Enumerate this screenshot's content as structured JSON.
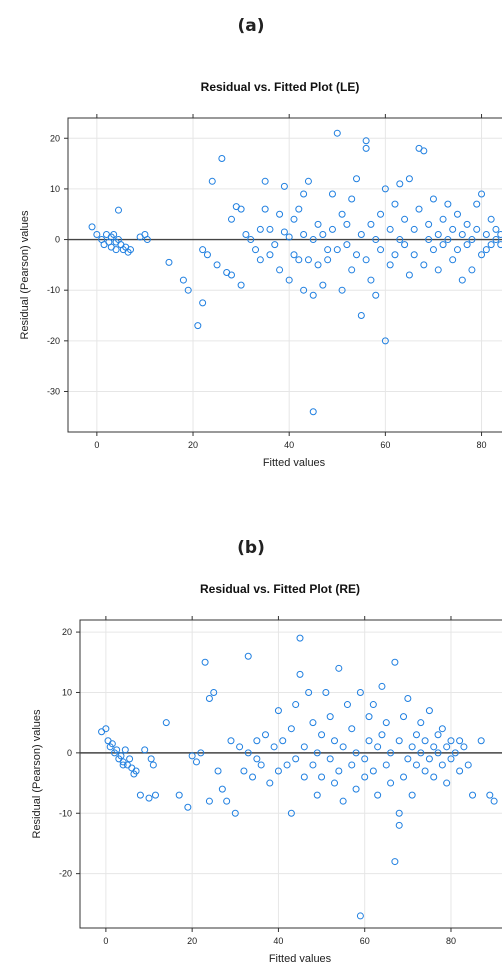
{
  "chart_data": [
    {
      "type": "scatter",
      "panel_label": "(a)",
      "title": "Residual vs. Fitted Plot (LE)",
      "xlabel": "Fitted values",
      "ylabel": "Residual (Pearson) values",
      "xlim": [
        -6,
        88
      ],
      "ylim": [
        -38,
        24
      ],
      "xticks": [
        0,
        20,
        40,
        60,
        80
      ],
      "yticks": [
        -30,
        -20,
        -10,
        0,
        10,
        20
      ],
      "reference_line_y": 0,
      "grid": true,
      "marker_color": "#1f7fe0",
      "points": [
        [
          -1,
          2.5
        ],
        [
          0,
          1
        ],
        [
          1,
          0
        ],
        [
          1.5,
          -1
        ],
        [
          2,
          1
        ],
        [
          2.5,
          -0.5
        ],
        [
          3,
          0.5
        ],
        [
          3,
          -1.5
        ],
        [
          3.5,
          1
        ],
        [
          4,
          -0.5
        ],
        [
          4,
          -2
        ],
        [
          4.5,
          0
        ],
        [
          5,
          -1
        ],
        [
          5.5,
          -2
        ],
        [
          6,
          -1.5
        ],
        [
          6.5,
          -2.5
        ],
        [
          7,
          -2
        ],
        [
          4.5,
          5.8
        ],
        [
          9,
          0.5
        ],
        [
          10,
          1
        ],
        [
          10.5,
          0
        ],
        [
          15,
          -4.5
        ],
        [
          18,
          -8
        ],
        [
          19,
          -10
        ],
        [
          21,
          -17
        ],
        [
          22,
          -12.5
        ],
        [
          22,
          -2
        ],
        [
          23,
          -3
        ],
        [
          24,
          11.5
        ],
        [
          25,
          -5
        ],
        [
          26,
          16
        ],
        [
          27,
          -6.5
        ],
        [
          28,
          -7
        ],
        [
          28,
          4
        ],
        [
          29,
          6.5
        ],
        [
          30,
          6
        ],
        [
          30,
          -9
        ],
        [
          31,
          1
        ],
        [
          32,
          0
        ],
        [
          33,
          -2
        ],
        [
          34,
          -4
        ],
        [
          34,
          2
        ],
        [
          35,
          11.5
        ],
        [
          35,
          6
        ],
        [
          36,
          -3
        ],
        [
          36,
          2
        ],
        [
          37,
          -1
        ],
        [
          38,
          5
        ],
        [
          38,
          -6
        ],
        [
          39,
          1.5
        ],
        [
          39,
          10.5
        ],
        [
          40,
          -8
        ],
        [
          40,
          0.5
        ],
        [
          41,
          4
        ],
        [
          41,
          -3
        ],
        [
          42,
          6
        ],
        [
          42,
          -4
        ],
        [
          43,
          9
        ],
        [
          43,
          1
        ],
        [
          43,
          -10
        ],
        [
          44,
          -4
        ],
        [
          44,
          11.5
        ],
        [
          45,
          0
        ],
        [
          45,
          -11
        ],
        [
          45,
          -34
        ],
        [
          46,
          -5
        ],
        [
          46,
          3
        ],
        [
          47,
          -9
        ],
        [
          47,
          1
        ],
        [
          48,
          -2
        ],
        [
          48,
          -4
        ],
        [
          49,
          2
        ],
        [
          49,
          9
        ],
        [
          50,
          21
        ],
        [
          50,
          -2
        ],
        [
          51,
          5
        ],
        [
          51,
          -10
        ],
        [
          52,
          -1
        ],
        [
          52,
          3
        ],
        [
          53,
          -6
        ],
        [
          53,
          8
        ],
        [
          54,
          -3
        ],
        [
          54,
          12
        ],
        [
          55,
          1
        ],
        [
          55,
          -15
        ],
        [
          56,
          -4
        ],
        [
          56,
          19.5
        ],
        [
          56,
          18
        ],
        [
          57,
          3
        ],
        [
          57,
          -8
        ],
        [
          58,
          0
        ],
        [
          58,
          -11
        ],
        [
          59,
          5
        ],
        [
          59,
          -2
        ],
        [
          60,
          10
        ],
        [
          60,
          -20
        ],
        [
          61,
          2
        ],
        [
          61,
          -5
        ],
        [
          62,
          7
        ],
        [
          62,
          -3
        ],
        [
          63,
          0
        ],
        [
          63,
          11
        ],
        [
          64,
          -1
        ],
        [
          64,
          4
        ],
        [
          65,
          -7
        ],
        [
          65,
          12
        ],
        [
          66,
          2
        ],
        [
          66,
          -3
        ],
        [
          67,
          18
        ],
        [
          67,
          6
        ],
        [
          68,
          17.5
        ],
        [
          68,
          -5
        ],
        [
          69,
          0
        ],
        [
          69,
          3
        ],
        [
          70,
          -2
        ],
        [
          70,
          8
        ],
        [
          71,
          1
        ],
        [
          71,
          -6
        ],
        [
          72,
          4
        ],
        [
          72,
          -1
        ],
        [
          73,
          0
        ],
        [
          73,
          7
        ],
        [
          74,
          -4
        ],
        [
          74,
          2
        ],
        [
          75,
          -2
        ],
        [
          75,
          5
        ],
        [
          76,
          1
        ],
        [
          76,
          -8
        ],
        [
          77,
          -1
        ],
        [
          77,
          3
        ],
        [
          78,
          0
        ],
        [
          78,
          -6
        ],
        [
          79,
          2
        ],
        [
          79,
          7
        ],
        [
          80,
          -3
        ],
        [
          80,
          9
        ],
        [
          81,
          1
        ],
        [
          81,
          -2
        ],
        [
          82,
          4
        ],
        [
          82,
          -1
        ],
        [
          83,
          0
        ],
        [
          83,
          2
        ],
        [
          84,
          -1
        ],
        [
          84,
          1
        ],
        [
          85,
          0
        ]
      ]
    },
    {
      "type": "scatter",
      "panel_label": "(b)",
      "title": "Residual vs. Fitted Plot (RE)",
      "xlabel": "Fitted values",
      "ylabel": "Residual (Pearson) values",
      "xlim": [
        -6,
        96
      ],
      "ylim": [
        -29,
        22
      ],
      "xticks": [
        0,
        20,
        40,
        60,
        80
      ],
      "yticks": [
        -20,
        -10,
        0,
        10,
        20
      ],
      "reference_line_y": 0,
      "grid": true,
      "marker_color": "#1f7fe0",
      "points": [
        [
          -1,
          3.5
        ],
        [
          0,
          4
        ],
        [
          0.5,
          2
        ],
        [
          1,
          1
        ],
        [
          1.5,
          1.5
        ],
        [
          2,
          0
        ],
        [
          2.5,
          0.5
        ],
        [
          3,
          -1
        ],
        [
          3.5,
          -0.5
        ],
        [
          4,
          -1.5
        ],
        [
          4.5,
          0.5
        ],
        [
          4,
          -2
        ],
        [
          5,
          -2
        ],
        [
          5.5,
          -1
        ],
        [
          6,
          -2.5
        ],
        [
          6.5,
          -3.5
        ],
        [
          7,
          -3
        ],
        [
          8,
          -7
        ],
        [
          9,
          0.5
        ],
        [
          10,
          -7.5
        ],
        [
          10.5,
          -1
        ],
        [
          11,
          -2
        ],
        [
          11.5,
          -7
        ],
        [
          14,
          5
        ],
        [
          17,
          -7
        ],
        [
          19,
          -9
        ],
        [
          20,
          -0.5
        ],
        [
          21,
          -1.5
        ],
        [
          22,
          0
        ],
        [
          23,
          15
        ],
        [
          24,
          9
        ],
        [
          24,
          -8
        ],
        [
          25,
          10
        ],
        [
          26,
          -3
        ],
        [
          27,
          -6
        ],
        [
          28,
          -8
        ],
        [
          29,
          2
        ],
        [
          30,
          -10
        ],
        [
          31,
          1
        ],
        [
          32,
          -3
        ],
        [
          33,
          16
        ],
        [
          33,
          0
        ],
        [
          34,
          -4
        ],
        [
          35,
          2
        ],
        [
          35,
          -1
        ],
        [
          36,
          -2
        ],
        [
          37,
          3
        ],
        [
          38,
          -5
        ],
        [
          39,
          1
        ],
        [
          40,
          -3
        ],
        [
          40,
          7
        ],
        [
          41,
          2
        ],
        [
          42,
          -2
        ],
        [
          43,
          4
        ],
        [
          43,
          -10
        ],
        [
          44,
          8
        ],
        [
          44,
          -1
        ],
        [
          45,
          19
        ],
        [
          45,
          13
        ],
        [
          46,
          -4
        ],
        [
          46,
          1
        ],
        [
          47,
          10
        ],
        [
          48,
          -2
        ],
        [
          48,
          5
        ],
        [
          49,
          -7
        ],
        [
          49,
          0
        ],
        [
          50,
          3
        ],
        [
          50,
          -4
        ],
        [
          51,
          10
        ],
        [
          52,
          -1
        ],
        [
          52,
          6
        ],
        [
          53,
          -5
        ],
        [
          53,
          2
        ],
        [
          54,
          14
        ],
        [
          54,
          -3
        ],
        [
          55,
          1
        ],
        [
          55,
          -8
        ],
        [
          56,
          8
        ],
        [
          57,
          -2
        ],
        [
          57,
          4
        ],
        [
          58,
          -6
        ],
        [
          58,
          0
        ],
        [
          59,
          -27
        ],
        [
          59,
          10
        ],
        [
          60,
          -1
        ],
        [
          60,
          -4
        ],
        [
          61,
          6
        ],
        [
          61,
          2
        ],
        [
          62,
          -3
        ],
        [
          62,
          8
        ],
        [
          63,
          -7
        ],
        [
          63,
          1
        ],
        [
          64,
          11
        ],
        [
          64,
          3
        ],
        [
          65,
          -2
        ],
        [
          65,
          5
        ],
        [
          66,
          -5
        ],
        [
          66,
          0
        ],
        [
          67,
          -18
        ],
        [
          67,
          15
        ],
        [
          68,
          -12
        ],
        [
          68,
          -10
        ],
        [
          68,
          2
        ],
        [
          69,
          -4
        ],
        [
          69,
          6
        ],
        [
          70,
          -1
        ],
        [
          70,
          9
        ],
        [
          71,
          1
        ],
        [
          71,
          -7
        ],
        [
          72,
          3
        ],
        [
          72,
          -2
        ],
        [
          73,
          0
        ],
        [
          73,
          5
        ],
        [
          74,
          -3
        ],
        [
          74,
          2
        ],
        [
          75,
          7
        ],
        [
          75,
          -1
        ],
        [
          76,
          -4
        ],
        [
          76,
          1
        ],
        [
          77,
          0
        ],
        [
          77,
          3
        ],
        [
          78,
          -2
        ],
        [
          78,
          4
        ],
        [
          79,
          1
        ],
        [
          79,
          -5
        ],
        [
          80,
          -1
        ],
        [
          80,
          2
        ],
        [
          81,
          0
        ],
        [
          82,
          -3
        ],
        [
          82,
          2
        ],
        [
          83,
          1
        ],
        [
          84,
          -2
        ],
        [
          85,
          -7
        ],
        [
          87,
          2
        ],
        [
          89,
          -7
        ],
        [
          90,
          -8
        ]
      ]
    }
  ]
}
